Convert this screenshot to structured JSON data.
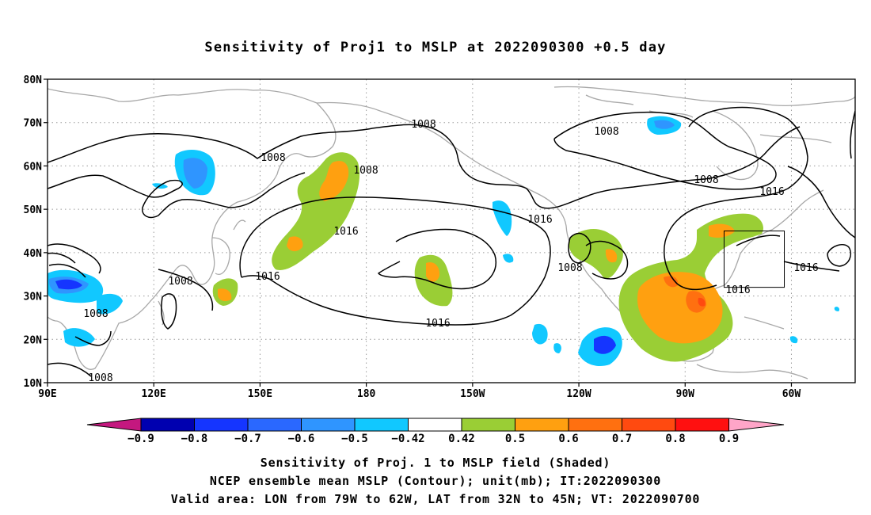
{
  "title": "Sensitivity of Proj1 to MSLP at 2022090300 +0.5 day",
  "axes": {
    "lat_ticks": [
      "80N",
      "70N",
      "60N",
      "50N",
      "40N",
      "30N",
      "20N",
      "10N"
    ],
    "lon_ticks": [
      "90E",
      "120E",
      "150E",
      "180",
      "150W",
      "120W",
      "90W",
      "60W"
    ],
    "lat_range": [
      10,
      80
    ],
    "lon_range": [
      90,
      318
    ]
  },
  "contour_labels": [
    "1008",
    "1008",
    "1008",
    "1008",
    "1008",
    "1008",
    "1008",
    "1008",
    "1016",
    "1016",
    "1016",
    "1016",
    "1016",
    "1016",
    "1016"
  ],
  "colorbar": {
    "ticks": [
      "-0.9",
      "-0.8",
      "-0.7",
      "-0.6",
      "-0.5",
      "-0.42",
      "0.42",
      "0.5",
      "0.6",
      "0.7",
      "0.8",
      "0.9"
    ],
    "colors": [
      "#0000b0",
      "#1535ff",
      "#2a68ff",
      "#2f95ff",
      "#11c8ff",
      "#ffffff",
      "#9ace35",
      "#ffa010",
      "#ff7010",
      "#ff4a10",
      "#ff1010"
    ],
    "end_low": "#c4187f",
    "end_high": "#ffa5c8"
  },
  "valid_area": {
    "lon": [
      -79,
      -62
    ],
    "lat": [
      32,
      45
    ]
  },
  "footer": {
    "line1": "Sensitivity of Proj. 1 to MSLP field (Shaded)",
    "line2": "NCEP ensemble mean MSLP (Contour); unit(mb); IT:2022090300",
    "line3": "Valid area: LON from 79W to 62W, LAT from 32N to 45N; VT: 2022090700"
  }
}
